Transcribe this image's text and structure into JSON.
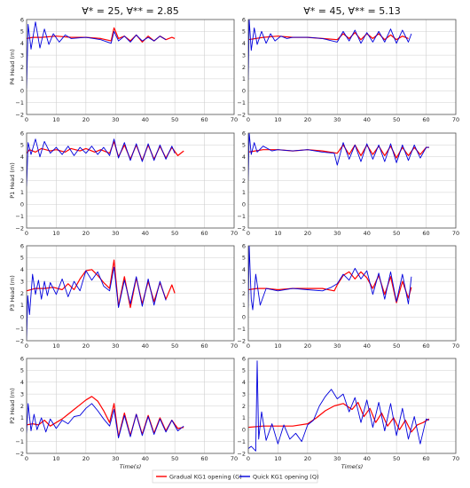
{
  "colors": {
    "gradual": "#ff0000",
    "quick": "#0000dd",
    "grid": "#cfcfcf",
    "axis": "#555555"
  },
  "chart_data": {
    "type": "line",
    "xlim": [
      0,
      70
    ],
    "ylim": [
      -2,
      6
    ],
    "x_ticks": [
      "0",
      "10",
      "20",
      "30",
      "40",
      "50",
      "60",
      "70"
    ],
    "y_ticks": [
      "−2",
      "−1",
      "0",
      "1",
      "2",
      "3",
      "4",
      "5",
      "6"
    ],
    "grid": true,
    "xlabel": "Time(s)",
    "column_titles": [
      "∀* = 25, ∀** = 2.85",
      "∀* = 45, ∀** = 5.13"
    ],
    "row_ylabels": [
      "P4 Head (m)",
      "P1 Head (m)",
      "P3 Head (m)",
      "P2 Head (m)"
    ],
    "legend": {
      "position": "bottom-center",
      "entries": [
        "Gradual KG1 opening (G)",
        "Quick KG1 opening (Q)"
      ]
    },
    "panels": [
      {
        "row": 0,
        "col": 0,
        "series": [
          {
            "key": "G",
            "x": [
              0,
              2,
              5,
              10,
              15,
              20,
              25,
              28.5,
              29.5,
              31,
              33,
              35,
              37,
              39,
              41,
              43,
              45,
              47,
              49,
              50
            ],
            "y": [
              4.4,
              4.5,
              4.5,
              4.6,
              4.5,
              4.5,
              4.4,
              4.2,
              5.3,
              4.4,
              4.6,
              4.2,
              4.7,
              4.1,
              4.6,
              4.2,
              4.6,
              4.3,
              4.5,
              4.4
            ]
          },
          {
            "key": "Q",
            "x": [
              0,
              0.5,
              1.5,
              3,
              4.5,
              6,
              7.5,
              9,
              11,
              13,
              15,
              20,
              25,
              28.5,
              29.5,
              31,
              33,
              35,
              37,
              39,
              41,
              43,
              45,
              47
            ],
            "y": [
              0.2,
              5.6,
              3.5,
              5.8,
              3.6,
              5.2,
              3.9,
              4.8,
              4.1,
              4.7,
              4.4,
              4.5,
              4.3,
              4.0,
              5.0,
              4.2,
              4.6,
              4.1,
              4.7,
              4.2,
              4.5,
              4.2,
              4.6,
              4.3
            ]
          }
        ]
      },
      {
        "row": 0,
        "col": 1,
        "series": [
          {
            "key": "G",
            "x": [
              0,
              5,
              10,
              15,
              20,
              25,
              30,
              32,
              34,
              36,
              38,
              40,
              42,
              44,
              46,
              48,
              50,
              52,
              54
            ],
            "y": [
              4.3,
              4.5,
              4.6,
              4.5,
              4.5,
              4.4,
              4.3,
              4.8,
              4.4,
              4.9,
              4.3,
              4.8,
              4.4,
              4.8,
              4.3,
              4.7,
              4.3,
              4.6,
              4.4
            ]
          },
          {
            "key": "Q",
            "x": [
              0,
              0.3,
              1,
              2,
              3,
              4.5,
              6,
              7.5,
              9,
              11,
              13,
              15,
              20,
              25,
              30,
              32,
              34,
              36,
              38,
              40,
              42,
              44,
              46,
              48,
              50,
              52,
              54,
              55
            ],
            "y": [
              0.9,
              6.0,
              3.4,
              5.3,
              3.9,
              5.0,
              4.0,
              4.8,
              4.2,
              4.6,
              4.4,
              4.5,
              4.5,
              4.4,
              4.1,
              5.0,
              4.2,
              5.1,
              4.0,
              4.9,
              4.1,
              5.0,
              4.1,
              5.2,
              4.0,
              5.1,
              4.1,
              4.8
            ]
          }
        ]
      },
      {
        "row": 1,
        "col": 0,
        "series": [
          {
            "key": "G",
            "x": [
              0,
              1,
              3,
              5,
              8,
              10,
              13,
              15,
              18,
              20,
              23,
              25,
              28,
              29.5,
              31,
              33,
              35,
              37,
              39,
              41,
              43,
              45,
              47,
              49,
              51,
              53
            ],
            "y": [
              4.3,
              4.6,
              4.4,
              4.7,
              4.5,
              4.6,
              4.4,
              4.7,
              4.5,
              4.7,
              4.4,
              4.6,
              4.3,
              5.3,
              4.0,
              5.0,
              3.8,
              5.0,
              3.7,
              5.0,
              3.8,
              4.9,
              3.9,
              4.8,
              4.1,
              4.5
            ]
          },
          {
            "key": "Q",
            "x": [
              0,
              0.5,
              1.5,
              3,
              4.5,
              6,
              8,
              10,
              12,
              14,
              16,
              18,
              20,
              22,
              24,
              26,
              28,
              29.5,
              31,
              33,
              35,
              37,
              39,
              41,
              43,
              45,
              47,
              49,
              50
            ],
            "y": [
              1.5,
              5.2,
              4.2,
              5.5,
              4.0,
              5.3,
              4.3,
              4.8,
              4.2,
              4.9,
              4.1,
              4.8,
              4.3,
              4.9,
              4.2,
              4.8,
              4.1,
              5.5,
              3.9,
              5.2,
              3.7,
              5.1,
              3.6,
              5.1,
              3.7,
              5.0,
              3.8,
              4.9,
              4.3
            ]
          }
        ]
      },
      {
        "row": 1,
        "col": 1,
        "series": [
          {
            "key": "G",
            "x": [
              0,
              5,
              10,
              15,
              20,
              25,
              30,
              32,
              34,
              36,
              38,
              40,
              42,
              44,
              46,
              48,
              50,
              52,
              54,
              56,
              58,
              60,
              61
            ],
            "y": [
              4.4,
              4.6,
              4.6,
              4.5,
              4.6,
              4.5,
              4.3,
              5.0,
              4.2,
              5.0,
              4.1,
              5.0,
              4.2,
              4.9,
              4.1,
              4.9,
              3.9,
              4.8,
              4.1,
              4.8,
              4.2,
              4.8,
              4.8
            ]
          },
          {
            "key": "Q",
            "x": [
              0,
              0.3,
              1,
              2,
              3,
              5,
              8,
              10,
              15,
              20,
              25,
              29,
              30,
              32,
              34,
              36,
              38,
              40,
              42,
              44,
              46,
              48,
              50,
              52,
              54,
              56,
              58,
              60,
              61
            ],
            "y": [
              2.0,
              6.0,
              4.2,
              5.2,
              4.4,
              4.9,
              4.5,
              4.6,
              4.5,
              4.6,
              4.4,
              4.3,
              3.3,
              5.2,
              3.8,
              5.0,
              3.6,
              5.1,
              3.8,
              5.0,
              3.6,
              5.1,
              3.5,
              5.0,
              3.7,
              5.0,
              3.9,
              4.8,
              4.8
            ]
          }
        ]
      },
      {
        "row": 2,
        "col": 0,
        "series": [
          {
            "key": "G",
            "x": [
              0,
              3,
              6,
              9,
              12,
              14,
              16,
              18,
              20,
              22,
              24,
              26,
              28,
              29.5,
              31,
              33,
              35,
              37,
              39,
              41,
              43,
              45,
              47,
              49,
              50
            ],
            "y": [
              2.2,
              2.4,
              2.4,
              2.5,
              2.3,
              2.8,
              2.3,
              3.2,
              3.9,
              4.0,
              3.5,
              2.9,
              2.4,
              4.8,
              0.9,
              3.4,
              0.8,
              3.3,
              1.1,
              3.0,
              1.3,
              2.9,
              1.5,
              2.7,
              2.0
            ]
          },
          {
            "key": "Q",
            "x": [
              0,
              0.4,
              1,
              2,
              3,
              4,
              5,
              6,
              7,
              8,
              10,
              12,
              14,
              16,
              18,
              20,
              22,
              24,
              26,
              28,
              29.5,
              31,
              33,
              35,
              37,
              39,
              41,
              43,
              45,
              47
            ],
            "y": [
              -1.9,
              1.8,
              0.2,
              3.6,
              1.9,
              3.1,
              1.5,
              3.0,
              1.8,
              2.9,
              1.9,
              3.2,
              1.7,
              3.0,
              2.2,
              3.9,
              3.1,
              3.8,
              2.6,
              2.2,
              4.2,
              0.8,
              3.1,
              1.1,
              3.4,
              0.9,
              3.2,
              1.0,
              3.0,
              1.4
            ]
          }
        ]
      },
      {
        "row": 2,
        "col": 1,
        "series": [
          {
            "key": "G",
            "x": [
              0,
              3,
              6,
              10,
              15,
              20,
              25,
              29,
              30,
              32,
              34,
              36,
              38,
              40,
              42,
              44,
              46,
              48,
              50,
              52,
              54,
              55
            ],
            "y": [
              2.3,
              2.4,
              2.4,
              2.3,
              2.4,
              2.4,
              2.4,
              2.2,
              2.7,
              3.5,
              3.8,
              3.2,
              3.8,
              3.3,
              2.4,
              3.5,
              1.9,
              3.4,
              1.2,
              3.0,
              1.6,
              2.5
            ]
          },
          {
            "key": "Q",
            "x": [
              0,
              0.3,
              1,
              1.5,
              2.5,
              4,
              6,
              10,
              15,
              20,
              25,
              28,
              30,
              32,
              34,
              36,
              38,
              40,
              42,
              44,
              46,
              48,
              50,
              52,
              54,
              55
            ],
            "y": [
              0.8,
              6.0,
              1.5,
              0.6,
              3.6,
              1.0,
              2.4,
              2.2,
              2.4,
              2.3,
              2.2,
              2.5,
              2.8,
              3.6,
              3.1,
              4.1,
              3.2,
              3.9,
              1.9,
              3.7,
              1.5,
              3.8,
              1.3,
              3.6,
              1.1,
              3.4
            ]
          }
        ]
      },
      {
        "row": 3,
        "col": 0,
        "series": [
          {
            "key": "G",
            "x": [
              0,
              2,
              4,
              6,
              8,
              10,
              12,
              14,
              16,
              18,
              20,
              22,
              24,
              26,
              28,
              29.5,
              31,
              33,
              35,
              37,
              39,
              41,
              43,
              45,
              47,
              49,
              51,
              53
            ],
            "y": [
              0.4,
              0.5,
              0.4,
              0.8,
              0.3,
              0.6,
              0.9,
              1.3,
              1.7,
              2.1,
              2.5,
              2.8,
              2.4,
              1.6,
              0.6,
              2.2,
              -0.6,
              1.4,
              -0.5,
              1.3,
              -0.4,
              1.2,
              -0.3,
              1.0,
              -0.1,
              0.8,
              0.1,
              0.2
            ]
          },
          {
            "key": "Q",
            "x": [
              0,
              0.5,
              1.5,
              2.5,
              3.5,
              5,
              6.5,
              8,
              10,
              12,
              14,
              16,
              18,
              20,
              22,
              24,
              26,
              28,
              29.5,
              31,
              33,
              35,
              37,
              39,
              41,
              43,
              45,
              47,
              49,
              51,
              53
            ],
            "y": [
              -0.3,
              2.2,
              -0.1,
              1.3,
              0.0,
              1.0,
              -0.2,
              0.9,
              0.1,
              0.8,
              0.5,
              1.1,
              1.2,
              1.8,
              2.2,
              1.6,
              0.9,
              0.3,
              1.7,
              -0.7,
              1.2,
              -0.6,
              1.3,
              -0.5,
              1.1,
              -0.4,
              0.9,
              -0.2,
              0.8,
              -0.1,
              0.3
            ]
          }
        ]
      },
      {
        "row": 3,
        "col": 1,
        "series": [
          {
            "key": "G",
            "x": [
              0,
              5,
              10,
              15,
              20,
              23,
              26,
              29,
              32,
              35,
              37,
              39,
              41,
              43,
              45,
              47,
              49,
              51,
              53,
              55,
              57,
              59,
              61
            ],
            "y": [
              0.2,
              0.3,
              0.3,
              0.3,
              0.5,
              1.0,
              1.6,
              2.0,
              2.2,
              1.7,
              2.3,
              1.1,
              1.8,
              0.6,
              1.4,
              0.3,
              1.0,
              0.0,
              0.8,
              -0.2,
              0.4,
              0.6,
              0.9
            ]
          },
          {
            "key": "Q",
            "x": [
              0,
              1,
              2.5,
              3,
              3.5,
              4.5,
              6,
              8,
              10,
              12,
              14,
              16,
              18,
              20,
              22,
              24,
              26,
              28,
              30,
              32,
              34,
              36,
              38,
              40,
              42,
              44,
              46,
              48,
              50,
              52,
              54,
              56,
              58,
              60,
              61
            ],
            "y": [
              -1.6,
              -1.4,
              -1.8,
              5.8,
              -0.8,
              1.5,
              -0.9,
              0.5,
              -1.2,
              0.4,
              -0.8,
              -0.3,
              -1.0,
              0.4,
              0.8,
              2.0,
              2.8,
              3.4,
              2.6,
              3.0,
              1.5,
              2.7,
              0.6,
              2.5,
              0.2,
              2.3,
              -0.1,
              2.2,
              -0.5,
              1.8,
              -0.8,
              1.1,
              -1.2,
              0.9,
              0.8
            ]
          }
        ]
      }
    ]
  }
}
